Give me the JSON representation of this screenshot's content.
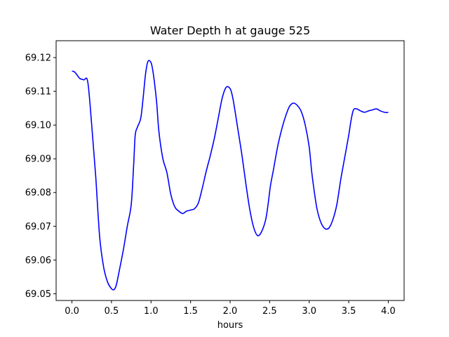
{
  "chart_data": {
    "type": "line",
    "title": "Water Depth h at gauge 525",
    "xlabel": "hours",
    "ylabel": "",
    "xlim": [
      -0.2,
      4.2
    ],
    "ylim": [
      69.048,
      69.125
    ],
    "grid": false,
    "xticks": [
      0.0,
      0.5,
      1.0,
      1.5,
      2.0,
      2.5,
      3.0,
      3.5,
      4.0
    ],
    "xtick_labels": [
      "0.0",
      "0.5",
      "1.0",
      "1.5",
      "2.0",
      "2.5",
      "3.0",
      "3.5",
      "4.0"
    ],
    "yticks": [
      69.05,
      69.06,
      69.07,
      69.08,
      69.09,
      69.1,
      69.11,
      69.12
    ],
    "ytick_labels": [
      "69.05",
      "69.06",
      "69.07",
      "69.08",
      "69.09",
      "69.10",
      "69.11",
      "69.12"
    ],
    "series": [
      {
        "color": "#0000ff",
        "x": [
          0.0,
          0.03,
          0.06,
          0.1,
          0.15,
          0.2,
          0.25,
          0.3,
          0.35,
          0.4,
          0.45,
          0.5,
          0.53,
          0.56,
          0.6,
          0.65,
          0.7,
          0.75,
          0.78,
          0.8,
          0.83,
          0.87,
          0.9,
          0.93,
          0.96,
          1.0,
          1.03,
          1.07,
          1.1,
          1.15,
          1.2,
          1.25,
          1.3,
          1.35,
          1.4,
          1.45,
          1.5,
          1.55,
          1.6,
          1.65,
          1.7,
          1.75,
          1.8,
          1.85,
          1.9,
          1.95,
          2.0,
          2.03,
          2.06,
          2.1,
          2.15,
          2.2,
          2.25,
          2.3,
          2.35,
          2.4,
          2.45,
          2.48,
          2.51,
          2.55,
          2.6,
          2.65,
          2.7,
          2.75,
          2.8,
          2.85,
          2.9,
          2.95,
          3.0,
          3.03,
          3.06,
          3.1,
          3.15,
          3.2,
          3.25,
          3.3,
          3.35,
          3.4,
          3.45,
          3.5,
          3.53,
          3.56,
          3.6,
          3.65,
          3.7,
          3.75,
          3.8,
          3.85,
          3.9,
          3.95,
          3.98,
          4.0
        ],
        "y": [
          69.116,
          69.1158,
          69.115,
          69.1138,
          69.1134,
          69.1128,
          69.1,
          69.085,
          69.067,
          69.058,
          69.0535,
          69.0515,
          69.0512,
          69.0525,
          69.057,
          69.063,
          69.07,
          69.0765,
          69.088,
          69.097,
          69.0995,
          69.102,
          69.108,
          69.115,
          69.1188,
          69.1185,
          69.115,
          69.107,
          69.098,
          69.09,
          69.086,
          69.0795,
          69.0758,
          69.0745,
          69.0738,
          69.0745,
          69.0748,
          69.0752,
          69.077,
          69.0815,
          69.0865,
          69.091,
          69.096,
          69.102,
          69.108,
          69.1112,
          69.1108,
          69.1085,
          69.1045,
          69.0985,
          69.091,
          69.0825,
          69.0748,
          69.0695,
          69.0672,
          69.0685,
          69.072,
          69.0765,
          69.082,
          69.087,
          69.0935,
          69.0985,
          69.1025,
          69.1055,
          69.1065,
          69.1058,
          69.104,
          69.1,
          69.0935,
          69.0865,
          69.081,
          69.075,
          69.071,
          69.0693,
          69.0695,
          69.072,
          69.0765,
          69.084,
          69.0905,
          69.097,
          69.1015,
          69.1045,
          69.1048,
          69.1042,
          69.1038,
          69.1042,
          69.1045,
          69.1048,
          69.1042,
          69.1038,
          69.1037,
          69.1038
        ]
      }
    ]
  }
}
